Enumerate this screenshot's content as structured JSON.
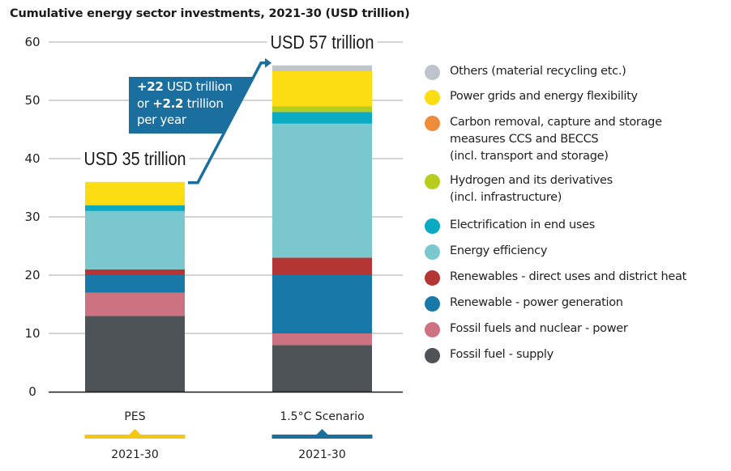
{
  "chart_data": {
    "type": "bar",
    "stacked": true,
    "title": "Cumulative energy sector investments, 2021-30 (USD trillion)",
    "xlabel": "",
    "ylabel": "",
    "ylim": [
      0,
      60
    ],
    "yticks": [
      0,
      10,
      20,
      30,
      40,
      50,
      60
    ],
    "grid": true,
    "legend_position": "right",
    "categories": [
      "PES",
      "1.5°C Scenario"
    ],
    "category_periods": [
      "2021-30",
      "2021-30"
    ],
    "category_colors": [
      "#f5c518",
      "#1a6f9e"
    ],
    "totals_labels": [
      "USD 35 trillion",
      "USD 57 trillion"
    ],
    "series": [
      {
        "name": "Fossil fuel - supply",
        "color": "#4d5356",
        "values": [
          13,
          8
        ]
      },
      {
        "name": "Fossil fuels and nuclear - power",
        "color": "#cc7280",
        "values": [
          4,
          2
        ]
      },
      {
        "name": "Renewable - power generation",
        "color": "#1878a8",
        "values": [
          3,
          10
        ]
      },
      {
        "name": "Renewables -  direct uses and district heat",
        "color": "#b33534",
        "values": [
          1,
          3
        ]
      },
      {
        "name": "Energy efficiency",
        "color": "#7ac8cd",
        "values": [
          10,
          23
        ]
      },
      {
        "name": "Electrification in end uses",
        "color": "#0aaac3",
        "values": [
          1,
          2
        ]
      },
      {
        "name": "Hydrogen and its derivatives\n(incl. infrastructure)",
        "color": "#b8cc1e",
        "values": [
          0,
          1
        ]
      },
      {
        "name": "Carbon removal, capture and storage\nmeasures CCS and BECCS\n(incl. transport and storage)",
        "color": "#ef8c3a",
        "values": [
          0,
          0
        ]
      },
      {
        "name": "Power grids and energy flexibility",
        "color": "#fcdc12",
        "values": [
          4,
          6
        ]
      },
      {
        "name": "Others (material recycling etc.)",
        "color": "#bec4cc",
        "values": [
          0,
          1
        ]
      }
    ],
    "annotation": {
      "line1_bold": "+22",
      "line1_rest": " USD trillion",
      "line2_pre": "or ",
      "line2_bold": "+2.2",
      "line2_rest": " trillion",
      "line3": "per year",
      "color": "#1a6f9e"
    }
  }
}
